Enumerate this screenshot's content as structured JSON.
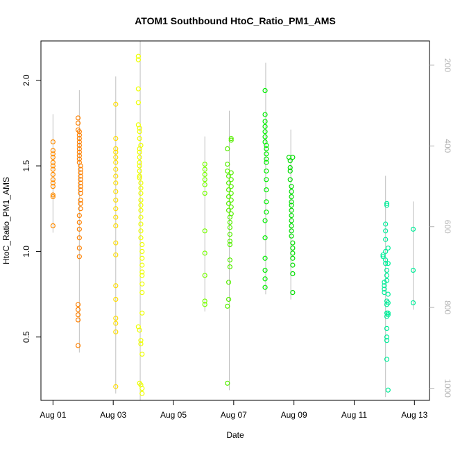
{
  "chart_data": {
    "type": "scatter",
    "title": "ATOM1 Southbound HtoC_Ratio_PM1_AMS",
    "xlabel": "Date",
    "ylabel": "HtoC_Ratio_PM1_AMS",
    "x_ticks": [
      "Aug 01",
      "Aug 03",
      "Aug 05",
      "Aug 07",
      "Aug 09",
      "Aug 11",
      "Aug 13"
    ],
    "y_ticks": [
      0.5,
      1.0,
      1.5,
      2.0
    ],
    "y_tick_labels": [
      "0.5",
      "1.0",
      "1.5",
      "2.0"
    ],
    "y_right_ticks": [
      200,
      400,
      600,
      800,
      1000
    ],
    "y_right_tick_labels": [
      "200",
      "400",
      "600",
      "800",
      "1000"
    ],
    "xlim": [
      "2016-07-31T14:24",
      "2016-08-13T12:00"
    ],
    "ylim": [
      0.13,
      2.23
    ],
    "y_right_lim": [
      1030,
      140
    ],
    "y_right_inverted": true,
    "grid": false,
    "marker": "open-circle",
    "line_color": "#c0c0c0",
    "groups": [
      {
        "color": "#ff8c00",
        "x": [
          "2016-08-01T00:00",
          "2016-08-01T00:00",
          "2016-08-01T00:00",
          "2016-08-01T00:00",
          "2016-08-01T00:00",
          "2016-08-01T00:00",
          "2016-08-01T00:00",
          "2016-08-01T00:00",
          "2016-08-01T00:00",
          "2016-08-01T00:00",
          "2016-08-01T00:00",
          "2016-08-01T00:00",
          "2016-08-01T00:00",
          "2016-08-01T00:00"
        ],
        "y": [
          1.64,
          1.59,
          1.57,
          1.55,
          1.52,
          1.5,
          1.48,
          1.45,
          1.42,
          1.4,
          1.38,
          1.33,
          1.32,
          1.15
        ]
      },
      {
        "color": "#ff8000",
        "x": [
          "2016-08-01T20:00",
          "2016-08-01T20:00",
          "2016-08-01T20:00",
          "2016-08-01T21:00",
          "2016-08-01T21:00",
          "2016-08-01T21:00",
          "2016-08-01T21:00",
          "2016-08-01T21:00",
          "2016-08-01T21:00",
          "2016-08-01T21:00",
          "2016-08-01T21:00",
          "2016-08-01T21:00",
          "2016-08-01T21:00",
          "2016-08-01T22:00",
          "2016-08-01T22:00",
          "2016-08-01T22:00",
          "2016-08-01T22:00",
          "2016-08-01T22:00",
          "2016-08-01T22:00",
          "2016-08-01T22:00",
          "2016-08-01T22:00",
          "2016-08-01T22:00",
          "2016-08-01T22:00",
          "2016-08-01T22:00",
          "2016-08-01T22:00",
          "2016-08-01T21:00",
          "2016-08-01T21:00",
          "2016-08-01T21:00",
          "2016-08-01T21:00",
          "2016-08-01T21:00",
          "2016-08-01T21:00",
          "2016-08-01T20:00",
          "2016-08-01T20:00",
          "2016-08-01T20:00",
          "2016-08-01T20:00",
          "2016-08-01T20:00"
        ],
        "y": [
          1.78,
          1.75,
          1.71,
          1.7,
          1.68,
          1.66,
          1.64,
          1.62,
          1.6,
          1.58,
          1.56,
          1.54,
          1.52,
          1.5,
          1.48,
          1.46,
          1.44,
          1.42,
          1.4,
          1.38,
          1.36,
          1.34,
          1.3,
          1.28,
          1.25,
          1.21,
          1.17,
          1.13,
          1.08,
          1.02,
          0.97,
          0.69,
          0.66,
          0.63,
          0.6,
          0.45
        ]
      },
      {
        "color": "#ffdd00",
        "x": [
          "2016-08-03T02:00",
          "2016-08-03T02:00",
          "2016-08-03T02:00",
          "2016-08-03T02:00",
          "2016-08-03T02:00",
          "2016-08-03T02:00",
          "2016-08-03T02:00",
          "2016-08-03T02:00",
          "2016-08-03T02:00",
          "2016-08-03T02:00",
          "2016-08-03T02:00",
          "2016-08-03T02:00",
          "2016-08-03T02:00",
          "2016-08-03T02:00",
          "2016-08-03T02:00",
          "2016-08-03T02:00",
          "2016-08-03T02:00",
          "2016-08-03T02:00",
          "2016-08-03T02:00",
          "2016-08-03T02:00",
          "2016-08-03T02:00",
          "2016-08-03T02:00"
        ],
        "y": [
          1.86,
          1.66,
          1.6,
          1.58,
          1.55,
          1.52,
          1.48,
          1.44,
          1.4,
          1.35,
          1.3,
          1.25,
          1.2,
          1.15,
          1.05,
          0.98,
          0.8,
          0.72,
          0.61,
          0.58,
          0.53,
          0.21
        ]
      },
      {
        "color": "#eeff00",
        "x": [
          "2016-08-03T20:00",
          "2016-08-03T20:00",
          "2016-08-03T20:00",
          "2016-08-03T20:00",
          "2016-08-03T20:00",
          "2016-08-03T21:00",
          "2016-08-03T21:00",
          "2016-08-03T21:00",
          "2016-08-03T21:00",
          "2016-08-03T21:00",
          "2016-08-03T21:00",
          "2016-08-03T21:00",
          "2016-08-03T21:00",
          "2016-08-03T21:00",
          "2016-08-03T21:00",
          "2016-08-03T22:00",
          "2016-08-03T22:00",
          "2016-08-03T22:00",
          "2016-08-03T22:00",
          "2016-08-03T22:00",
          "2016-08-03T22:00",
          "2016-08-03T22:00",
          "2016-08-03T22:00",
          "2016-08-03T22:00",
          "2016-08-03T22:00",
          "2016-08-03T23:00",
          "2016-08-03T23:00",
          "2016-08-03T23:00",
          "2016-08-03T23:00",
          "2016-08-03T23:00",
          "2016-08-03T23:00",
          "2016-08-03T23:00",
          "2016-08-03T23:00",
          "2016-08-03T23:00",
          "2016-08-03T20:00",
          "2016-08-03T21:00",
          "2016-08-03T22:00",
          "2016-08-03T22:00",
          "2016-08-03T23:00",
          "2016-08-03T21:00",
          "2016-08-03T22:00",
          "2016-08-03T23:00",
          "2016-08-03T23:00",
          "2016-08-03T22:00",
          "2016-08-03T21:00"
        ],
        "y": [
          2.14,
          2.12,
          1.95,
          1.87,
          1.74,
          1.72,
          1.7,
          1.66,
          1.6,
          1.58,
          1.55,
          1.52,
          1.5,
          1.47,
          1.44,
          1.4,
          1.37,
          1.34,
          1.3,
          1.27,
          1.24,
          1.2,
          1.16,
          1.12,
          1.08,
          1.04,
          1.0,
          0.96,
          0.92,
          0.88,
          0.86,
          0.81,
          0.76,
          0.64,
          0.56,
          0.54,
          0.48,
          0.46,
          0.4,
          0.23,
          0.22,
          0.2,
          0.17,
          1.62,
          1.43
        ]
      },
      {
        "color": "#77ff00",
        "x": [
          "2016-08-06T01:00",
          "2016-08-06T01:00",
          "2016-08-06T01:00",
          "2016-08-06T01:00",
          "2016-08-06T01:00",
          "2016-08-06T01:00",
          "2016-08-06T01:00",
          "2016-08-06T01:00",
          "2016-08-06T01:00",
          "2016-08-06T01:00",
          "2016-08-06T01:00"
        ],
        "y": [
          1.51,
          1.48,
          1.45,
          1.42,
          1.39,
          1.34,
          1.12,
          0.99,
          0.86,
          0.71,
          0.69
        ]
      },
      {
        "color": "#55ee00",
        "x": [
          "2016-08-06T19:00",
          "2016-08-06T19:00",
          "2016-08-06T19:00",
          "2016-08-06T20:00",
          "2016-08-06T20:00",
          "2016-08-06T20:00",
          "2016-08-06T20:00",
          "2016-08-06T20:00",
          "2016-08-06T20:00",
          "2016-08-06T21:00",
          "2016-08-06T21:00",
          "2016-08-06T21:00",
          "2016-08-06T21:00",
          "2016-08-06T21:00",
          "2016-08-06T21:00",
          "2016-08-06T21:00",
          "2016-08-06T22:00",
          "2016-08-06T22:00",
          "2016-08-06T22:00",
          "2016-08-06T22:00",
          "2016-08-06T22:00",
          "2016-08-06T22:00",
          "2016-08-06T22:00",
          "2016-08-06T22:00",
          "2016-08-06T22:00",
          "2016-08-06T21:00",
          "2016-08-06T20:00",
          "2016-08-06T20:00",
          "2016-08-06T19:00",
          "2016-08-06T19:00"
        ],
        "y": [
          1.6,
          1.51,
          1.47,
          1.44,
          1.4,
          1.36,
          1.32,
          1.28,
          1.24,
          1.2,
          1.17,
          1.14,
          1.1,
          1.06,
          1.04,
          0.95,
          1.66,
          1.65,
          1.46,
          1.42,
          1.38,
          1.34,
          1.3,
          1.26,
          1.22,
          0.91,
          0.82,
          0.72,
          0.68,
          0.23
        ]
      },
      {
        "color": "#00ee00",
        "x": [
          "2016-08-08T01:00",
          "2016-08-08T01:00",
          "2016-08-08T01:00",
          "2016-08-08T01:00",
          "2016-08-08T01:00",
          "2016-08-08T01:00",
          "2016-08-08T01:00",
          "2016-08-08T02:00",
          "2016-08-08T02:00",
          "2016-08-08T02:00",
          "2016-08-08T02:00",
          "2016-08-08T02:00",
          "2016-08-08T02:00",
          "2016-08-08T02:00",
          "2016-08-08T02:00",
          "2016-08-08T02:00",
          "2016-08-08T02:00",
          "2016-08-08T01:00",
          "2016-08-08T01:00",
          "2016-08-08T01:00",
          "2016-08-08T01:00",
          "2016-08-08T01:00",
          "2016-08-08T01:00"
        ],
        "y": [
          1.94,
          1.8,
          1.76,
          1.73,
          1.7,
          1.67,
          1.64,
          1.62,
          1.6,
          1.57,
          1.54,
          1.52,
          1.47,
          1.42,
          1.36,
          1.29,
          1.23,
          1.18,
          1.08,
          0.96,
          0.89,
          0.84,
          0.79
        ]
      },
      {
        "color": "#00dd00",
        "x": [
          "2016-08-08T20:00",
          "2016-08-08T21:00",
          "2016-08-08T21:00",
          "2016-08-08T21:00",
          "2016-08-08T21:00",
          "2016-08-08T22:00",
          "2016-08-08T22:00",
          "2016-08-08T22:00",
          "2016-08-08T22:00",
          "2016-08-08T22:00",
          "2016-08-08T22:00",
          "2016-08-08T22:00",
          "2016-08-08T22:00",
          "2016-08-08T22:00",
          "2016-08-08T22:00",
          "2016-08-08T22:00",
          "2016-08-08T23:00",
          "2016-08-08T23:00",
          "2016-08-08T23:00",
          "2016-08-08T23:00",
          "2016-08-08T23:00",
          "2016-08-08T23:00",
          "2016-08-08T23:00",
          "2016-08-08T23:00"
        ],
        "y": [
          1.55,
          1.53,
          1.49,
          1.47,
          1.42,
          1.38,
          1.35,
          1.32,
          1.29,
          1.27,
          1.24,
          1.21,
          1.18,
          1.15,
          1.12,
          1.09,
          1.05,
          1.02,
          0.99,
          0.96,
          0.92,
          0.87,
          0.76,
          1.55
        ]
      },
      {
        "color": "#00ee99",
        "x": [
          "2016-08-11T23:00",
          "2016-08-11T23:00",
          "2016-08-12T00:00",
          "2016-08-12T00:00",
          "2016-08-12T00:00",
          "2016-08-12T00:00",
          "2016-08-12T01:00",
          "2016-08-12T01:00",
          "2016-08-12T01:00",
          "2016-08-12T01:00",
          "2016-08-12T01:00",
          "2016-08-12T01:00",
          "2016-08-12T02:00",
          "2016-08-12T02:00",
          "2016-08-12T02:00",
          "2016-08-12T02:00",
          "2016-08-12T02:00",
          "2016-08-12T02:00",
          "2016-08-12T02:00",
          "2016-08-12T02:00",
          "2016-08-12T02:00",
          "2016-08-12T02:00",
          "2016-08-12T02:00",
          "2016-08-12T02:00",
          "2016-08-12T02:00",
          "2016-08-12T03:00",
          "2016-08-12T03:00",
          "2016-08-12T03:00",
          "2016-08-12T03:00",
          "2016-08-12T03:00",
          "2016-08-12T03:00",
          "2016-08-12T03:00"
        ],
        "y": [
          0.98,
          0.97,
          0.82,
          0.8,
          0.78,
          0.76,
          1.16,
          1.12,
          1.07,
          1.0,
          0.95,
          0.93,
          1.28,
          1.27,
          0.89,
          0.86,
          0.83,
          0.71,
          0.69,
          0.64,
          0.62,
          0.55,
          0.5,
          0.48,
          0.37,
          0.19,
          1.02,
          0.93,
          0.75,
          0.7,
          0.64,
          0.63
        ]
      },
      {
        "color": "#00ee99",
        "x": [
          "2016-08-12T23:00",
          "2016-08-12T23:00",
          "2016-08-12T23:00"
        ],
        "y": [
          1.13,
          0.89,
          0.7
        ]
      }
    ]
  }
}
